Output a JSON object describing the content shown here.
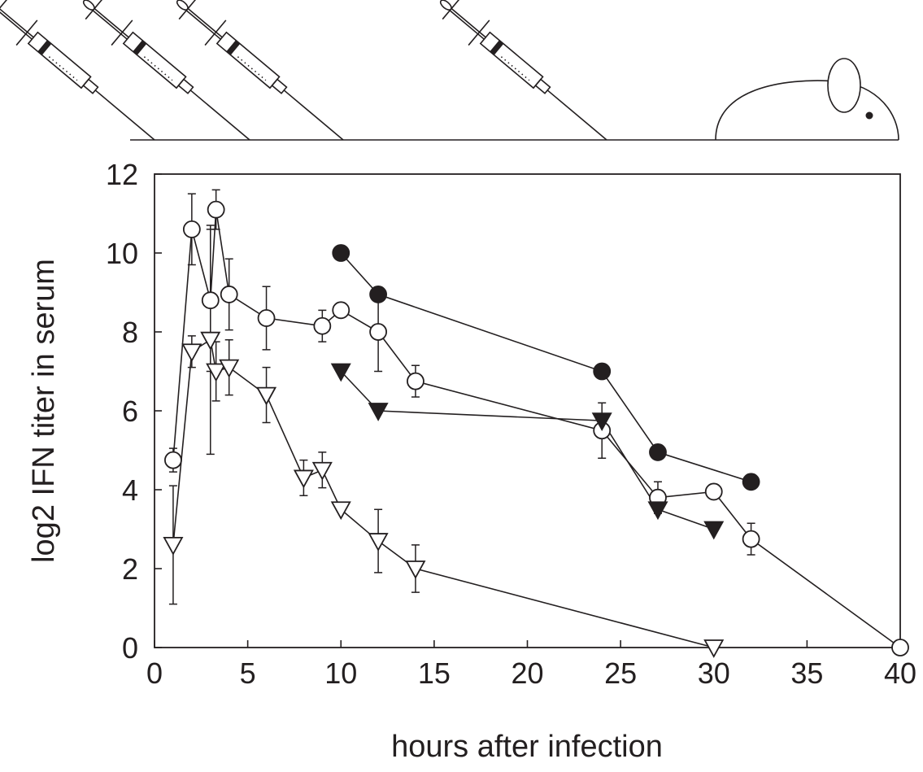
{
  "chart_data": {
    "type": "line",
    "xlabel": "hours after infection",
    "ylabel": "log2 IFN titer in serum",
    "xlim": [
      0,
      40
    ],
    "xticks": [
      0,
      5,
      10,
      15,
      20,
      25,
      30,
      35,
      40
    ],
    "ylim": [
      0,
      12
    ],
    "yticks": [
      0,
      2,
      4,
      6,
      8,
      10,
      12
    ],
    "grid": false,
    "series": [
      {
        "marker": "circle",
        "color": "#ffffff",
        "x": [
          1,
          2,
          3,
          3.3,
          4,
          6,
          9,
          10,
          12,
          14,
          24,
          27,
          30,
          32,
          40
        ],
        "values": [
          4.75,
          10.6,
          8.8,
          11.1,
          8.95,
          8.35,
          8.15,
          8.55,
          8.0,
          6.75,
          5.5,
          3.8,
          3.95,
          2.75,
          0
        ],
        "errors": [
          0.3,
          0.9,
          1.8,
          0.5,
          0.9,
          0.8,
          0.4,
          null,
          1.0,
          0.4,
          0.7,
          0.4,
          null,
          0.4,
          null
        ]
      },
      {
        "marker": "circle",
        "color": "#231f20",
        "x": [
          10,
          12,
          24,
          27,
          32
        ],
        "values": [
          10.0,
          8.95,
          7.0,
          4.95,
          4.2
        ]
      },
      {
        "marker": "triangle",
        "color": "#231f20",
        "x": [
          10,
          12,
          24,
          27,
          30
        ],
        "values": [
          7.0,
          6.0,
          5.75,
          3.5,
          3.0
        ]
      },
      {
        "marker": "triangle",
        "color": "#ffffff",
        "x": [
          1,
          2,
          3,
          3.3,
          4,
          6,
          8,
          9,
          10,
          12,
          14,
          30
        ],
        "values": [
          2.6,
          7.5,
          7.8,
          7.0,
          7.1,
          6.4,
          4.3,
          4.5,
          3.5,
          2.7,
          2.0,
          0
        ],
        "errors": [
          1.5,
          0.4,
          2.9,
          0.75,
          0.7,
          0.7,
          0.45,
          0.45,
          null,
          0.8,
          0.6,
          null
        ]
      }
    ]
  }
}
